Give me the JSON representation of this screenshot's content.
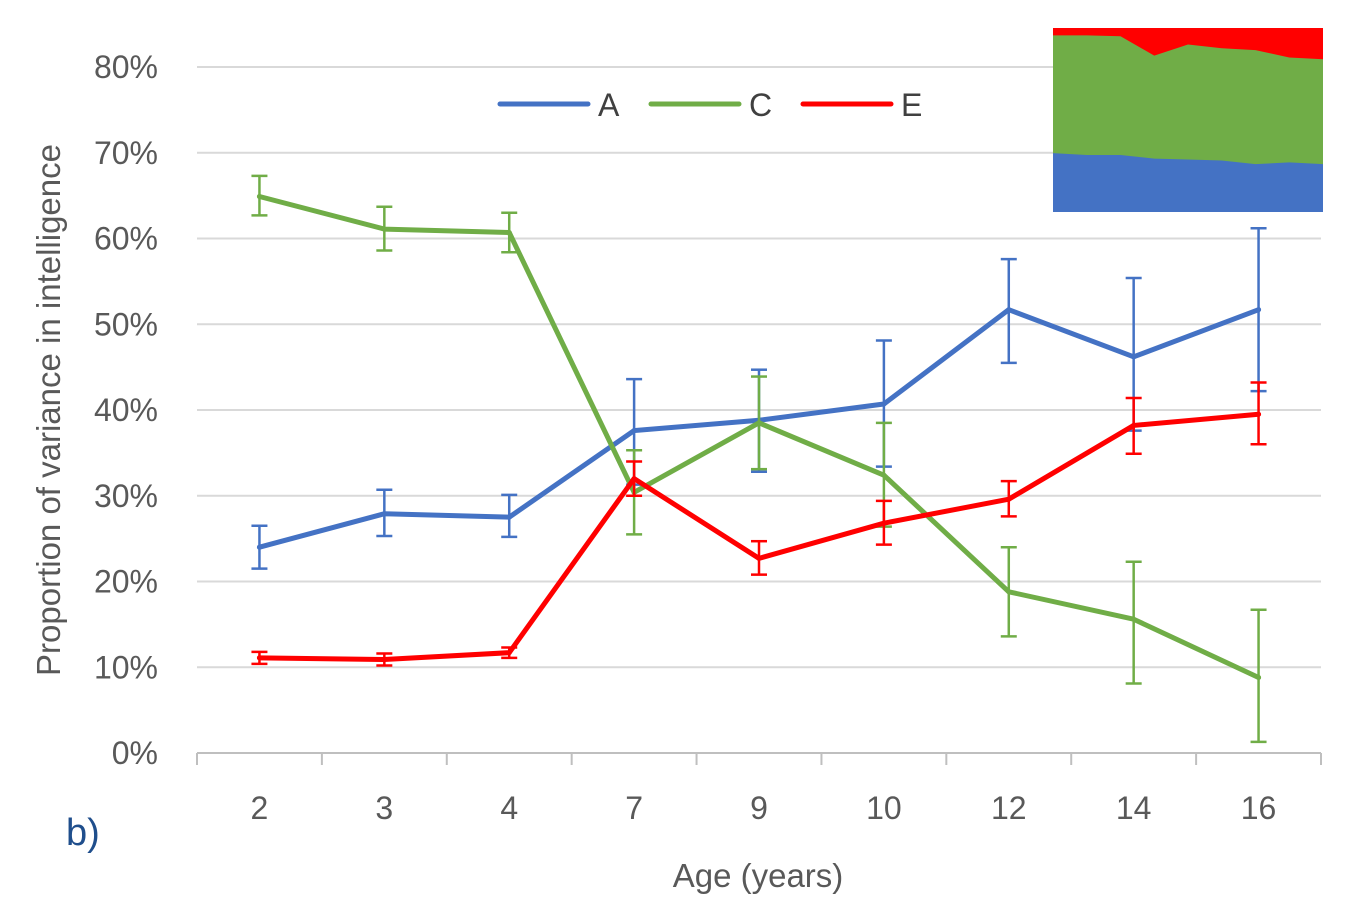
{
  "panel_label": "b)",
  "chart_data": {
    "type": "line",
    "xlabel": "Age (years)",
    "ylabel": "Proportion of variance in intelligence",
    "categories": [
      "2",
      "3",
      "4",
      "7",
      "9",
      "10",
      "12",
      "14",
      "16"
    ],
    "ylim": [
      0,
      80
    ],
    "yticks": [
      "0%",
      "10%",
      "20%",
      "30%",
      "40%",
      "50%",
      "60%",
      "70%",
      "80%"
    ],
    "grid": true,
    "legend_position": "top-center",
    "series": [
      {
        "name": "A",
        "color": "#4472C4",
        "values": [
          24,
          27.9,
          27.5,
          37.6,
          38.8,
          40.7,
          51.7,
          46.2,
          51.7
        ],
        "err_low": [
          21.5,
          25.3,
          25.2,
          31.3,
          32.8,
          33.4,
          45.5,
          37.6,
          42.2
        ],
        "err_high": [
          26.5,
          30.7,
          30.1,
          43.6,
          44.7,
          48.1,
          57.6,
          55.4,
          61.2
        ]
      },
      {
        "name": "C",
        "color": "#70AD47",
        "values": [
          64.9,
          61.1,
          60.7,
          30.4,
          38.5,
          32.4,
          18.8,
          15.6,
          8.8
        ],
        "err_low": [
          62.7,
          58.6,
          58.4,
          25.5,
          33.1,
          26.4,
          13.6,
          8.1,
          1.3
        ],
        "err_high": [
          67.3,
          63.7,
          63.0,
          35.3,
          43.9,
          38.5,
          24.0,
          22.3,
          16.7
        ]
      },
      {
        "name": "E",
        "color": "#FF0000",
        "values": [
          11.1,
          10.9,
          11.7,
          32.0,
          22.7,
          26.8,
          29.6,
          38.2,
          39.5
        ],
        "err_low": [
          10.4,
          10.2,
          11.1,
          30.0,
          20.8,
          24.3,
          27.6,
          34.9,
          36.0
        ],
        "err_high": [
          11.8,
          11.6,
          12.3,
          34.0,
          24.7,
          29.4,
          31.7,
          41.4,
          43.2
        ]
      }
    ],
    "inset": {
      "type": "stacked-area",
      "a_top": [
        32,
        31,
        31,
        29,
        28.5,
        28,
        26,
        27,
        26
      ],
      "ac_boundary": [
        4,
        4,
        4.5,
        15,
        9,
        11,
        12,
        16,
        17
      ],
      "colors": {
        "A": "#4472C4",
        "C": "#70AD47",
        "E": "#FF0000"
      }
    }
  }
}
